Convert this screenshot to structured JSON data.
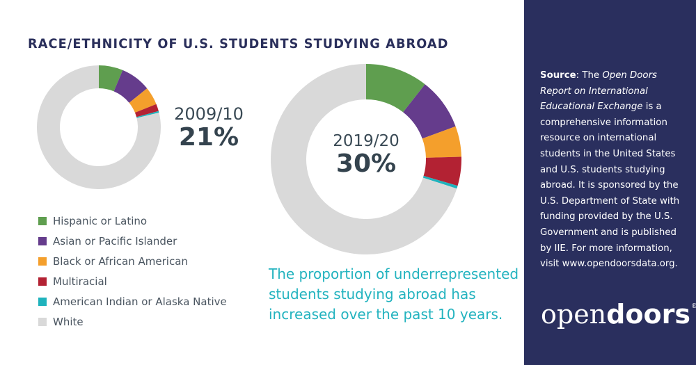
{
  "title": "RACE/ETHNICITY OF U.S. STUDENTS STUDYING ABROAD",
  "donut_small": {
    "year": "2009/10",
    "percent": "21%"
  },
  "donut_large": {
    "year": "2019/20",
    "percent": "30%"
  },
  "legend": [
    {
      "label": "Hispanic or Latino",
      "color": "#5f9e4f"
    },
    {
      "label": "Asian or Pacific Islander",
      "color": "#653c8c"
    },
    {
      "label": "Black or African American",
      "color": "#f49f2c"
    },
    {
      "label": "Multiracial",
      "color": "#b32233"
    },
    {
      "label": "American Indian or Alaska Native",
      "color": "#1fb3bd"
    },
    {
      "label": "White",
      "color": "#d9d9d9"
    }
  ],
  "takeaway": "The proportion of underrepresented students studying abroad has increased over the past 10 years.",
  "sidebar": {
    "source_label": "Source",
    "source_pre": ": The ",
    "source_title": "Open Doors Report on International Educational Exchange",
    "source_body": " is a comprehensive information resource on international students in the United States and U.S. students studying abroad. It is sponsored by the U.S. Department of State with funding provided by the U.S. Government and is published by IIE. For more information, visit www.opendoorsdata.org.",
    "logo_light": "open",
    "logo_bold": "doors",
    "logo_mark": "®"
  },
  "chart_data": [
    {
      "type": "pie",
      "subtype": "donut",
      "title": "2009/10",
      "center_label": "21%",
      "categories": [
        "Hispanic or Latino",
        "Asian or Pacific Islander",
        "Black or African American",
        "Multiracial",
        "American Indian or Alaska Native",
        "White"
      ],
      "values": [
        6.3,
        7.9,
        4.7,
        1.9,
        0.4,
        78.8
      ],
      "colors": [
        "#5f9e4f",
        "#653c8c",
        "#f49f2c",
        "#b32233",
        "#1fb3bd",
        "#d9d9d9"
      ],
      "unit": "%"
    },
    {
      "type": "pie",
      "subtype": "donut",
      "title": "2019/20",
      "center_label": "30%",
      "categories": [
        "Hispanic or Latino",
        "Asian or Pacific Islander",
        "Black or African American",
        "Multiracial",
        "American Indian or Alaska Native",
        "White"
      ],
      "values": [
        10.6,
        8.8,
        5.2,
        4.9,
        0.5,
        70.0
      ],
      "colors": [
        "#5f9e4f",
        "#653c8c",
        "#f49f2c",
        "#b32233",
        "#1fb3bd",
        "#d9d9d9"
      ],
      "unit": "%"
    }
  ]
}
